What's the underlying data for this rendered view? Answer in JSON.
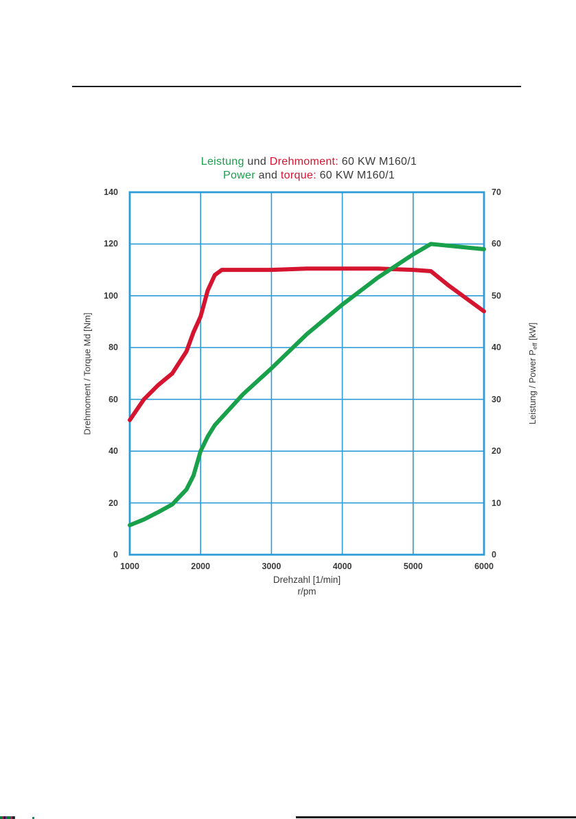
{
  "palette": {
    "green": "#18a04a",
    "red": "#d5142f",
    "dark": "#3a3a3a",
    "grid_blue": "#2b9cd8",
    "text": "#3a3a3a",
    "rule_black": "#1c1c1c"
  },
  "title": {
    "line1": [
      {
        "text": "Leistung",
        "color": "green"
      },
      {
        "text": " und ",
        "color": "dark"
      },
      {
        "text": "Drehmoment:",
        "color": "red"
      },
      {
        "text": " 60 KW M160/1",
        "color": "dark"
      }
    ],
    "line2": [
      {
        "text": "Power",
        "color": "green"
      },
      {
        "text": " and ",
        "color": "dark"
      },
      {
        "text": "torque:",
        "color": "red"
      },
      {
        "text": " 60 KW M160/1",
        "color": "dark"
      }
    ]
  },
  "chart_data": {
    "type": "line",
    "title": "Leistung und Drehmoment: 60 KW M160/1 / Power and torque: 60 KW M160/1",
    "grid": "on",
    "x_axis": {
      "label": "Drehzahl [1/min]",
      "sublabel": "r/pm",
      "min": 1000,
      "max": 6000,
      "ticks": [
        1000,
        2000,
        3000,
        4000,
        5000,
        6000
      ]
    },
    "y_left": {
      "label": "Drehmoment / Torque Md [Nm]",
      "min": 0,
      "max": 140,
      "ticks": [
        0,
        20,
        40,
        60,
        80,
        100,
        120,
        140
      ]
    },
    "y_right": {
      "label_pre": "Leistung / Power P",
      "label_sub": "eff",
      "label_post": " [kW]",
      "min": 0,
      "max": 70,
      "ticks": [
        0,
        10,
        20,
        30,
        40,
        50,
        60,
        70
      ]
    },
    "series": [
      {
        "name": "Drehmoment / Torque",
        "color_key": "red",
        "axis": "left",
        "unit": "Nm",
        "points": [
          [
            1000,
            52
          ],
          [
            1200,
            60
          ],
          [
            1400,
            65.5
          ],
          [
            1600,
            70
          ],
          [
            1800,
            78.5
          ],
          [
            1900,
            86
          ],
          [
            2000,
            92
          ],
          [
            2100,
            102
          ],
          [
            2200,
            108
          ],
          [
            2300,
            110
          ],
          [
            2500,
            110
          ],
          [
            3000,
            110
          ],
          [
            3500,
            110.5
          ],
          [
            4000,
            110.5
          ],
          [
            4500,
            110.5
          ],
          [
            5000,
            110
          ],
          [
            5250,
            109.5
          ],
          [
            5500,
            104
          ],
          [
            6000,
            94
          ]
        ]
      },
      {
        "name": "Leistung / Power",
        "color_key": "green",
        "axis": "right",
        "unit": "kW",
        "points": [
          [
            1000,
            5.7
          ],
          [
            1200,
            6.8
          ],
          [
            1400,
            8.2
          ],
          [
            1600,
            9.7
          ],
          [
            1800,
            12.6
          ],
          [
            1900,
            15.3
          ],
          [
            2000,
            20
          ],
          [
            2100,
            22.8
          ],
          [
            2200,
            25
          ],
          [
            2600,
            31
          ],
          [
            3000,
            36
          ],
          [
            3500,
            42.6
          ],
          [
            4000,
            48.3
          ],
          [
            4500,
            53.5
          ],
          [
            5000,
            58
          ],
          [
            5250,
            60
          ],
          [
            6000,
            59
          ]
        ]
      }
    ]
  }
}
